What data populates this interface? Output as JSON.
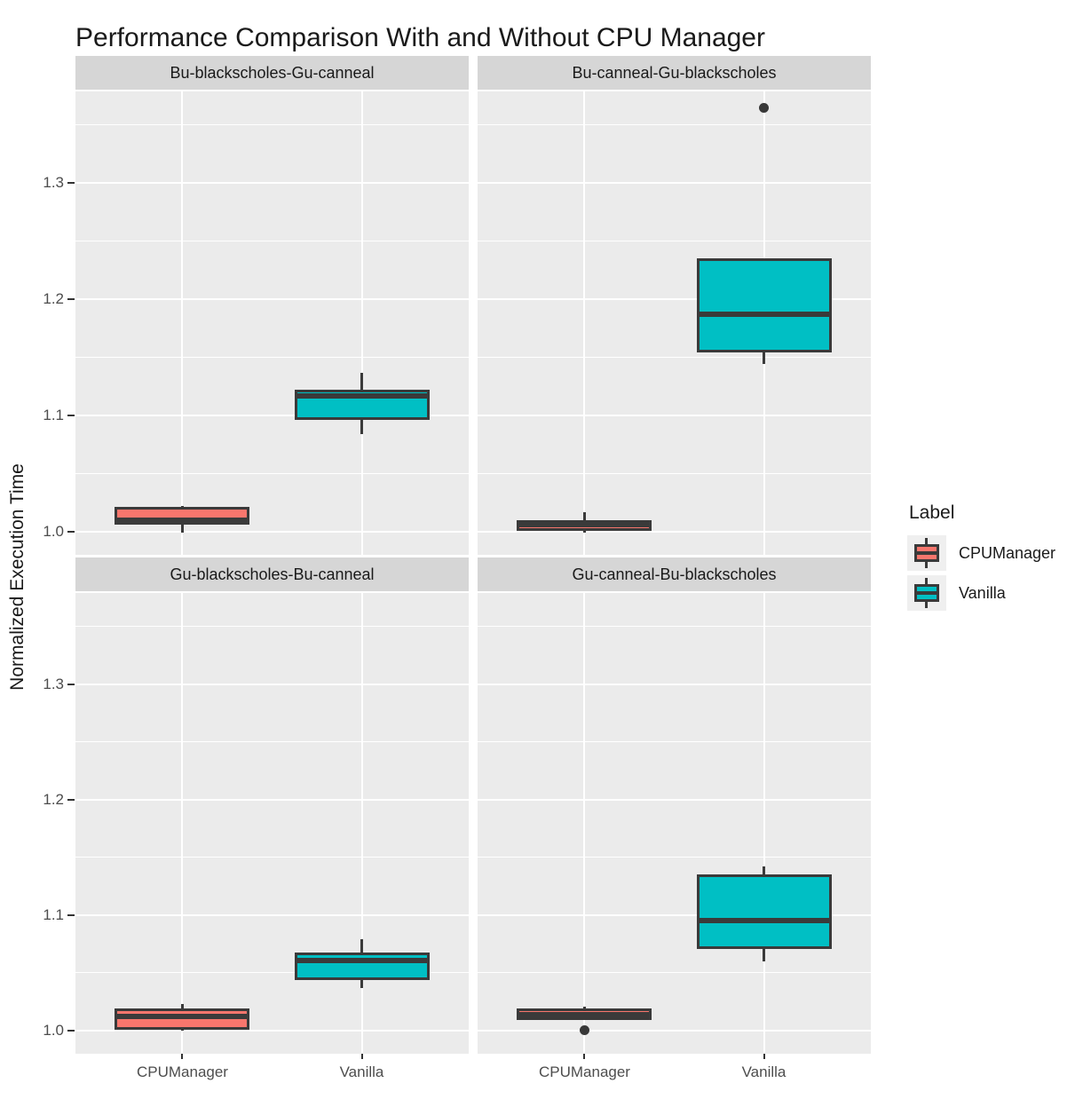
{
  "title": "Performance Comparison With and Without CPU Manager",
  "y_axis_title": "Normalized Execution Time",
  "legend": {
    "title": "Label",
    "entries": [
      {
        "label": "CPUManager",
        "color": "#F8766D"
      },
      {
        "label": "Vanilla",
        "color": "#00BFC4"
      }
    ]
  },
  "colors": {
    "panel_background": "#EBEBEB",
    "strip_background": "#D6D6D6",
    "gridline": "#FFFFFF",
    "box_outline": "#3A3A3A",
    "axis_text": "#4D4D4D",
    "cpumanager_fill": "#F8766D",
    "vanilla_fill": "#00BFC4"
  },
  "chart_data": {
    "type": "boxplot",
    "x_categories": [
      "CPUManager",
      "Vanilla"
    ],
    "y_tick_labels": [
      "1.0",
      "1.1",
      "1.2",
      "1.3"
    ],
    "y_tick_values": [
      1.0,
      1.1,
      1.2,
      1.3
    ],
    "y_minor_tick_values": [
      1.05,
      1.15,
      1.25,
      1.35
    ],
    "y_range": [
      0.98,
      1.379
    ],
    "series_colors": {
      "CPUManager": "#F8766D",
      "Vanilla": "#00BFC4"
    },
    "facets": [
      {
        "label": "Bu-blackscholes-Gu-canneal",
        "boxes": [
          {
            "group": "CPUManager",
            "whisker_low": 0.999,
            "q1": 1.006,
            "median": 1.01,
            "q3": 1.021,
            "whisker_high": 1.022,
            "outliers": []
          },
          {
            "group": "Vanilla",
            "whisker_low": 1.084,
            "q1": 1.096,
            "median": 1.117,
            "q3": 1.122,
            "whisker_high": 1.137,
            "outliers": []
          }
        ]
      },
      {
        "label": "Bu-canneal-Gu-blackscholes",
        "boxes": [
          {
            "group": "CPUManager",
            "whisker_low": 0.999,
            "q1": 1.001,
            "median": 1.006,
            "q3": 1.01,
            "whisker_high": 1.017,
            "outliers": []
          },
          {
            "group": "Vanilla",
            "whisker_low": 1.144,
            "q1": 1.154,
            "median": 1.187,
            "q3": 1.235,
            "whisker_high": 1.235,
            "outliers": [
              1.365
            ]
          }
        ]
      },
      {
        "label": "Gu-blackscholes-Bu-canneal",
        "boxes": [
          {
            "group": "CPUManager",
            "whisker_low": 1.0,
            "q1": 1.001,
            "median": 1.012,
            "q3": 1.019,
            "whisker_high": 1.023,
            "outliers": []
          },
          {
            "group": "Vanilla",
            "whisker_low": 1.037,
            "q1": 1.044,
            "median": 1.061,
            "q3": 1.068,
            "whisker_high": 1.079,
            "outliers": []
          }
        ]
      },
      {
        "label": "Gu-canneal-Bu-blackscholes",
        "boxes": [
          {
            "group": "CPUManager",
            "whisker_low": 1.009,
            "q1": 1.009,
            "median": 1.014,
            "q3": 1.019,
            "whisker_high": 1.021,
            "outliers": [
              1.0
            ]
          },
          {
            "group": "Vanilla",
            "whisker_low": 1.06,
            "q1": 1.071,
            "median": 1.095,
            "q3": 1.135,
            "whisker_high": 1.142,
            "outliers": []
          }
        ]
      }
    ]
  }
}
